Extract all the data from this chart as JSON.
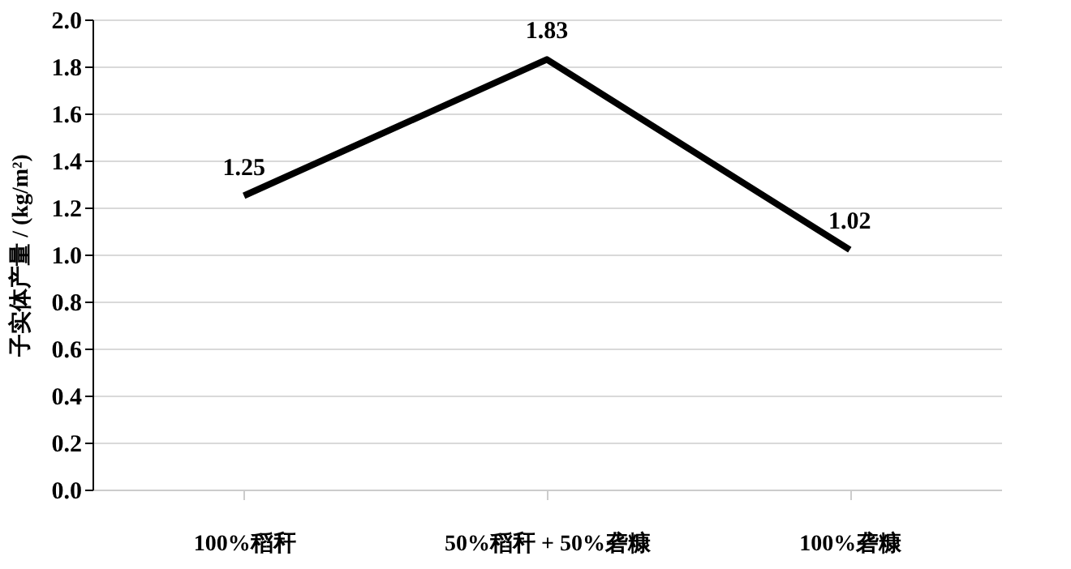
{
  "chart_data": {
    "type": "line",
    "ylabel": "子实体产量 / (kg/m²)",
    "categories": [
      "100%稻秆",
      "50%稻秆 + 50%砻糠",
      "100%砻糠"
    ],
    "series": [
      {
        "color": "#000000",
        "values": [
          1.25,
          1.83,
          1.02
        ]
      }
    ],
    "ylim": [
      0,
      2.0
    ],
    "yticks": [
      {
        "value": 0,
        "label": "0.0"
      },
      0.2,
      0.4,
      0.6,
      0.8,
      {
        "value": 1,
        "label": "1.0"
      },
      1.2,
      1.4,
      1.6,
      1.8,
      {
        "value": 2,
        "label": "2.0"
      }
    ],
    "grid": "y",
    "data_labels": true,
    "marker": "none",
    "line_style": "solid"
  }
}
